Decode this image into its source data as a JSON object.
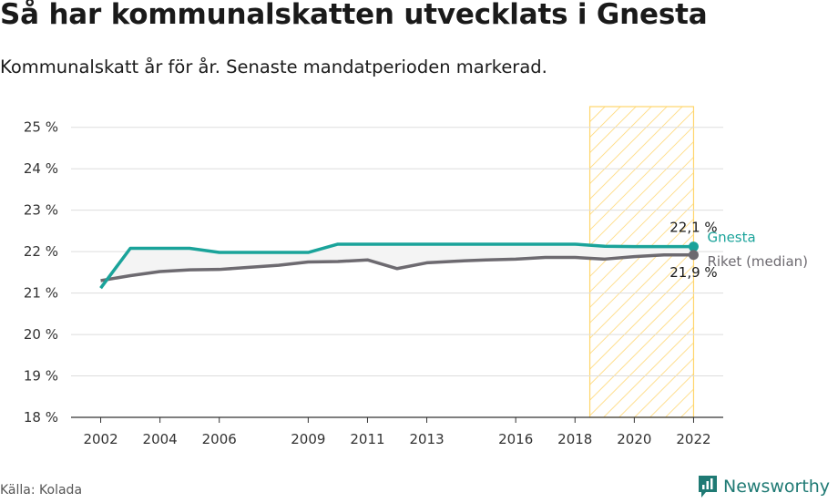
{
  "title": "Så har kommunalskatten utvecklats i Gnesta",
  "subtitle": "Kommunalskatt år för år. Senaste mandatperioden markerad.",
  "source": "Källa: Kolada",
  "brand": "Newsworthy",
  "colors": {
    "gnesta": "#1aa39a",
    "riket": "#6d6a70",
    "highlight": "#ffd56b",
    "grid": "#dddddd"
  },
  "chart_data": {
    "type": "line",
    "title": "Så har kommunalskatten utvecklats i Gnesta",
    "xlabel": "",
    "ylabel": "",
    "ylim": [
      18,
      25.5
    ],
    "xlim": [
      2001,
      2023
    ],
    "yticks": [
      18,
      19,
      20,
      21,
      22,
      23,
      24,
      25
    ],
    "ytick_labels": [
      "18 %",
      "19 %",
      "20 %",
      "21 %",
      "22 %",
      "23 %",
      "24 %",
      "25 %"
    ],
    "xticks": [
      2002,
      2004,
      2006,
      2009,
      2011,
      2013,
      2016,
      2018,
      2020,
      2022
    ],
    "xtick_labels": [
      "2002",
      "2004",
      "2006",
      "2009",
      "2011",
      "2013",
      "2016",
      "2018",
      "2020",
      "2022"
    ],
    "highlight": {
      "label": "Senaste mandatperioden",
      "from": 2018.5,
      "to": 2022
    },
    "series": [
      {
        "name": "Gnesta",
        "key": "gnesta",
        "end_label": "22,1 %",
        "x": [
          2002,
          2003,
          2004,
          2005,
          2006,
          2007,
          2008,
          2009,
          2010,
          2011,
          2012,
          2013,
          2014,
          2015,
          2016,
          2017,
          2018,
          2019,
          2020,
          2021,
          2022
        ],
        "values": [
          21.12,
          22.08,
          22.08,
          22.08,
          21.98,
          21.98,
          21.98,
          21.98,
          22.18,
          22.18,
          22.18,
          22.18,
          22.18,
          22.18,
          22.18,
          22.18,
          22.18,
          22.13,
          22.12,
          22.12,
          22.12
        ]
      },
      {
        "name": "Riket (median)",
        "key": "riket",
        "end_label": "21,9 %",
        "x": [
          2002,
          2003,
          2004,
          2005,
          2006,
          2007,
          2008,
          2009,
          2010,
          2011,
          2012,
          2013,
          2014,
          2015,
          2016,
          2017,
          2018,
          2019,
          2020,
          2021,
          2022
        ],
        "values": [
          21.3,
          21.42,
          21.52,
          21.56,
          21.57,
          21.62,
          21.67,
          21.75,
          21.76,
          21.8,
          21.59,
          21.73,
          21.77,
          21.8,
          21.82,
          21.86,
          21.86,
          21.82,
          21.88,
          21.92,
          21.92
        ]
      }
    ]
  }
}
